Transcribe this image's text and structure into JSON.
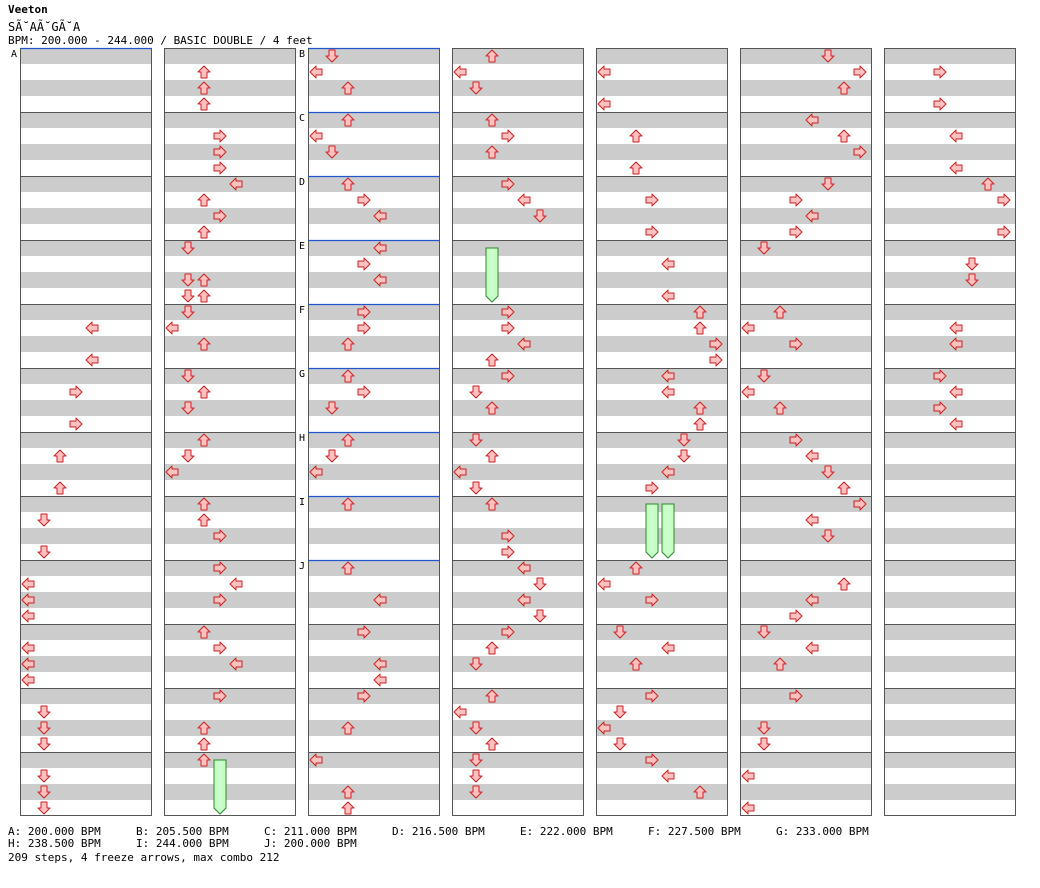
{
  "header": {
    "artist": "Veeton",
    "song_title": "SÃ˘AÃ˘GÃ˘A",
    "meta": "BPM: 200.000 - 244.000 / BASIC DOUBLE / 4 feet"
  },
  "chart_data": {
    "type": "step-chart",
    "style": "BASIC DOUBLE",
    "feet": 4,
    "columns": 7,
    "measures_per_column": 12,
    "beats_per_measure": 4,
    "colors": {
      "arrow_fill": "#ffc0c0",
      "arrow_stroke": "#cc2222",
      "freeze_fill": "#c8ffc8",
      "freeze_stroke": "#2a8a2a",
      "stripe": "#cccccc",
      "bpm_line": "#2255cc"
    },
    "section_markers": [
      {
        "label": "A",
        "column": 0,
        "measure": 0
      },
      {
        "label": "B",
        "column": 2,
        "measure": 0
      },
      {
        "label": "C",
        "column": 2,
        "measure": 1
      },
      {
        "label": "D",
        "column": 2,
        "measure": 2
      },
      {
        "label": "E",
        "column": 2,
        "measure": 3
      },
      {
        "label": "F",
        "column": 2,
        "measure": 4
      },
      {
        "label": "G",
        "column": 2,
        "measure": 5
      },
      {
        "label": "H",
        "column": 2,
        "measure": 6
      },
      {
        "label": "I",
        "column": 2,
        "measure": 7
      },
      {
        "label": "J",
        "column": 2,
        "measure": 8
      }
    ],
    "arrows": [
      [
        1,
        0,
        1,
        2
      ],
      [
        1,
        0,
        2,
        2
      ],
      [
        1,
        0,
        3,
        2
      ],
      [
        1,
        1,
        1,
        3
      ],
      [
        1,
        1,
        2,
        3
      ],
      [
        1,
        1,
        3,
        3
      ],
      [
        1,
        2,
        0,
        4
      ],
      [
        1,
        2,
        1,
        2
      ],
      [
        1,
        2,
        2,
        3
      ],
      [
        1,
        2,
        3,
        2
      ],
      [
        1,
        3,
        0,
        1
      ],
      [
        1,
        3,
        2,
        1
      ],
      [
        1,
        3,
        2,
        2
      ],
      [
        1,
        3,
        3,
        1
      ],
      [
        1,
        3,
        3,
        2
      ],
      [
        1,
        4,
        0,
        1
      ],
      [
        1,
        4,
        1,
        0
      ],
      [
        1,
        4,
        2,
        2
      ],
      [
        1,
        5,
        0,
        1
      ],
      [
        1,
        5,
        1,
        2
      ],
      [
        1,
        5,
        2,
        1
      ],
      [
        1,
        6,
        0,
        2
      ],
      [
        1,
        6,
        1,
        1
      ],
      [
        1,
        6,
        2,
        0
      ],
      [
        1,
        7,
        0,
        2
      ],
      [
        1,
        7,
        1,
        2
      ],
      [
        1,
        7,
        2,
        3
      ],
      [
        1,
        8,
        0,
        3
      ],
      [
        1,
        8,
        1,
        4
      ],
      [
        1,
        8,
        2,
        3
      ],
      [
        1,
        9,
        0,
        2
      ],
      [
        1,
        9,
        1,
        3
      ],
      [
        1,
        9,
        2,
        4
      ],
      [
        1,
        10,
        0,
        3
      ],
      [
        1,
        10,
        2,
        2
      ],
      [
        1,
        10,
        3,
        2
      ],
      [
        1,
        11,
        0,
        2
      ],
      [
        0,
        4,
        1,
        4
      ],
      [
        0,
        4,
        3,
        4
      ],
      [
        0,
        5,
        1,
        3
      ],
      [
        0,
        5,
        3,
        3
      ],
      [
        0,
        6,
        1,
        2
      ],
      [
        0,
        6,
        3,
        2
      ],
      [
        0,
        7,
        1,
        1
      ],
      [
        0,
        7,
        3,
        1
      ],
      [
        0,
        8,
        1,
        0
      ],
      [
        0,
        8,
        2,
        0
      ],
      [
        0,
        8,
        3,
        0
      ],
      [
        0,
        9,
        1,
        0
      ],
      [
        0,
        9,
        2,
        0
      ],
      [
        0,
        9,
        3,
        0
      ],
      [
        0,
        10,
        1,
        1
      ],
      [
        0,
        10,
        2,
        1
      ],
      [
        0,
        10,
        3,
        1
      ],
      [
        0,
        11,
        1,
        1
      ],
      [
        0,
        11,
        2,
        1
      ],
      [
        0,
        11,
        3,
        1
      ],
      [
        2,
        0,
        0,
        1
      ],
      [
        2,
        0,
        1,
        0
      ],
      [
        2,
        0,
        2,
        2
      ],
      [
        2,
        1,
        0,
        2
      ],
      [
        2,
        1,
        1,
        0
      ],
      [
        2,
        1,
        2,
        1
      ],
      [
        2,
        2,
        0,
        2
      ],
      [
        2,
        2,
        1,
        3
      ],
      [
        2,
        2,
        2,
        4
      ],
      [
        2,
        3,
        0,
        4
      ],
      [
        2,
        3,
        1,
        3
      ],
      [
        2,
        3,
        2,
        4
      ],
      [
        2,
        4,
        0,
        3
      ],
      [
        2,
        4,
        1,
        3
      ],
      [
        2,
        4,
        2,
        2
      ],
      [
        2,
        5,
        0,
        2
      ],
      [
        2,
        5,
        1,
        3
      ],
      [
        2,
        5,
        2,
        1
      ],
      [
        2,
        6,
        0,
        2
      ],
      [
        2,
        6,
        1,
        1
      ],
      [
        2,
        6,
        2,
        0
      ],
      [
        2,
        7,
        0,
        2
      ],
      [
        2,
        8,
        0,
        2
      ],
      [
        2,
        8,
        2,
        4
      ],
      [
        2,
        9,
        0,
        3
      ],
      [
        2,
        9,
        2,
        4
      ],
      [
        2,
        9,
        3,
        4
      ],
      [
        2,
        10,
        0,
        3
      ],
      [
        2,
        10,
        2,
        2
      ],
      [
        2,
        11,
        0,
        0
      ],
      [
        2,
        11,
        2,
        2
      ],
      [
        2,
        11,
        3,
        2
      ],
      [
        3,
        0,
        0,
        2
      ],
      [
        3,
        0,
        1,
        0
      ],
      [
        3,
        0,
        2,
        1
      ],
      [
        3,
        1,
        0,
        2
      ],
      [
        3,
        1,
        1,
        3
      ],
      [
        3,
        1,
        2,
        2
      ],
      [
        3,
        2,
        0,
        3
      ],
      [
        3,
        2,
        1,
        4
      ],
      [
        3,
        2,
        2,
        5
      ],
      [
        3,
        4,
        0,
        3
      ],
      [
        3,
        4,
        1,
        3
      ],
      [
        3,
        4,
        2,
        4
      ],
      [
        3,
        4,
        3,
        2
      ],
      [
        3,
        5,
        0,
        3
      ],
      [
        3,
        5,
        1,
        1
      ],
      [
        3,
        5,
        2,
        2
      ],
      [
        3,
        6,
        0,
        1
      ],
      [
        3,
        6,
        1,
        2
      ],
      [
        3,
        6,
        2,
        0
      ],
      [
        3,
        6,
        3,
        1
      ],
      [
        3,
        7,
        0,
        2
      ],
      [
        3,
        7,
        2,
        3
      ],
      [
        3,
        7,
        3,
        3
      ],
      [
        3,
        8,
        0,
        4
      ],
      [
        3,
        8,
        1,
        5
      ],
      [
        3,
        8,
        2,
        4
      ],
      [
        3,
        8,
        3,
        5
      ],
      [
        3,
        9,
        0,
        3
      ],
      [
        3,
        9,
        1,
        2
      ],
      [
        3,
        9,
        2,
        1
      ],
      [
        3,
        10,
        0,
        2
      ],
      [
        3,
        10,
        1,
        0
      ],
      [
        3,
        10,
        2,
        1
      ],
      [
        3,
        10,
        3,
        2
      ],
      [
        3,
        11,
        0,
        1
      ],
      [
        3,
        11,
        1,
        1
      ],
      [
        3,
        11,
        2,
        1
      ],
      [
        4,
        0,
        1,
        0
      ],
      [
        4,
        0,
        3,
        0
      ],
      [
        4,
        1,
        1,
        2
      ],
      [
        4,
        1,
        3,
        2
      ],
      [
        4,
        2,
        1,
        3
      ],
      [
        4,
        2,
        3,
        3
      ],
      [
        4,
        3,
        1,
        4
      ],
      [
        4,
        3,
        3,
        4
      ],
      [
        4,
        4,
        0,
        6
      ],
      [
        4,
        4,
        1,
        6
      ],
      [
        4,
        4,
        2,
        7
      ],
      [
        4,
        4,
        3,
        7
      ],
      [
        4,
        5,
        0,
        4
      ],
      [
        4,
        5,
        1,
        4
      ],
      [
        4,
        5,
        2,
        6
      ],
      [
        4,
        5,
        3,
        6
      ],
      [
        4,
        6,
        0,
        5
      ],
      [
        4,
        6,
        1,
        5
      ],
      [
        4,
        6,
        2,
        4
      ],
      [
        4,
        6,
        3,
        3
      ],
      [
        4,
        8,
        0,
        2
      ],
      [
        4,
        8,
        1,
        0
      ],
      [
        4,
        8,
        2,
        3
      ],
      [
        4,
        9,
        0,
        1
      ],
      [
        4,
        9,
        1,
        4
      ],
      [
        4,
        9,
        2,
        2
      ],
      [
        4,
        10,
        0,
        3
      ],
      [
        4,
        10,
        1,
        1
      ],
      [
        4,
        10,
        2,
        0
      ],
      [
        4,
        10,
        3,
        1
      ],
      [
        4,
        11,
        0,
        3
      ],
      [
        4,
        11,
        1,
        4
      ],
      [
        4,
        11,
        2,
        6
      ],
      [
        5,
        0,
        0,
        5
      ],
      [
        5,
        0,
        1,
        7
      ],
      [
        5,
        0,
        2,
        6
      ],
      [
        5,
        1,
        0,
        4
      ],
      [
        5,
        1,
        1,
        6
      ],
      [
        5,
        1,
        2,
        7
      ],
      [
        5,
        2,
        0,
        5
      ],
      [
        5,
        2,
        1,
        3
      ],
      [
        5,
        2,
        2,
        4
      ],
      [
        5,
        2,
        3,
        3
      ],
      [
        5,
        3,
        0,
        1
      ],
      [
        5,
        4,
        0,
        2
      ],
      [
        5,
        4,
        1,
        0
      ],
      [
        5,
        4,
        2,
        3
      ],
      [
        5,
        5,
        0,
        1
      ],
      [
        5,
        5,
        1,
        0
      ],
      [
        5,
        5,
        2,
        2
      ],
      [
        5,
        6,
        0,
        3
      ],
      [
        5,
        6,
        1,
        4
      ],
      [
        5,
        6,
        2,
        5
      ],
      [
        5,
        6,
        3,
        6
      ],
      [
        5,
        7,
        0,
        7
      ],
      [
        5,
        7,
        1,
        4
      ],
      [
        5,
        7,
        2,
        5
      ],
      [
        5,
        8,
        1,
        6
      ],
      [
        5,
        8,
        2,
        4
      ],
      [
        5,
        8,
        3,
        3
      ],
      [
        5,
        9,
        0,
        1
      ],
      [
        5,
        9,
        1,
        4
      ],
      [
        5,
        9,
        2,
        2
      ],
      [
        5,
        10,
        0,
        3
      ],
      [
        5,
        10,
        2,
        1
      ],
      [
        5,
        10,
        3,
        1
      ],
      [
        5,
        11,
        1,
        0
      ],
      [
        5,
        11,
        3,
        0
      ],
      [
        6,
        0,
        1,
        3
      ],
      [
        6,
        0,
        3,
        3
      ],
      [
        6,
        1,
        1,
        4
      ],
      [
        6,
        1,
        3,
        4
      ],
      [
        6,
        2,
        0,
        6
      ],
      [
        6,
        2,
        1,
        7
      ],
      [
        6,
        2,
        3,
        7
      ],
      [
        6,
        3,
        1,
        5
      ],
      [
        6,
        3,
        2,
        5
      ],
      [
        6,
        4,
        1,
        4
      ],
      [
        6,
        4,
        2,
        4
      ],
      [
        6,
        5,
        0,
        3
      ],
      [
        6,
        5,
        1,
        4
      ],
      [
        6,
        5,
        2,
        3
      ],
      [
        6,
        5,
        3,
        4
      ]
    ],
    "freezes": [
      [
        3,
        3,
        0,
        3,
        3,
        2
      ],
      [
        4,
        7,
        0,
        7,
        3,
        3
      ],
      [
        4,
        7,
        0,
        7,
        3,
        4
      ],
      [
        1,
        11,
        0,
        11,
        3,
        3
      ]
    ],
    "bpm_changes": [
      "A: 200.000 BPM",
      "B: 205.500 BPM",
      "C: 211.000 BPM",
      "D: 216.500 BPM",
      "E: 222.000 BPM",
      "F: 227.500 BPM",
      "G: 233.000 BPM",
      "H: 238.500 BPM",
      "I: 244.000 BPM",
      "J: 200.000 BPM"
    ],
    "summary": "209 steps, 4 freeze arrows, max combo 212"
  }
}
